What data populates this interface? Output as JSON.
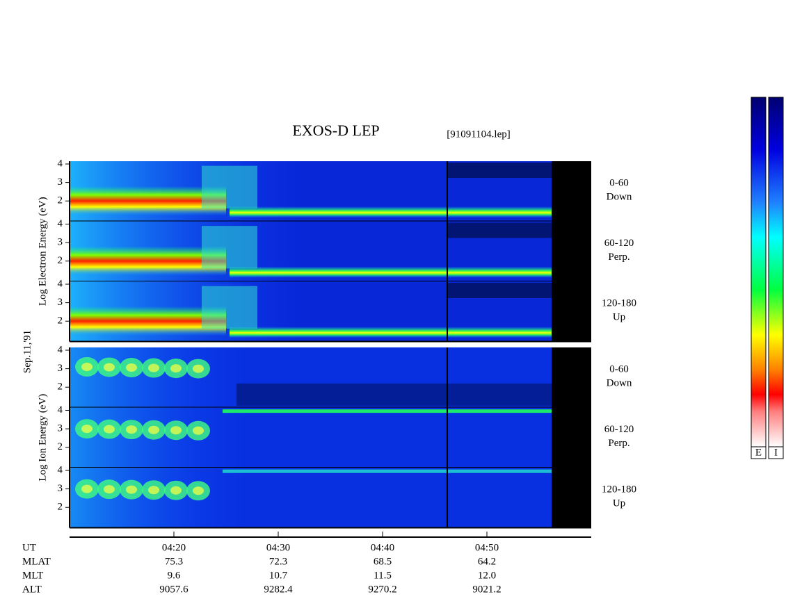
{
  "chart_data": {
    "type": "spectrogram",
    "title": "EXOS-D LEP",
    "file_label": "[91091104.lep]",
    "date_label": "Sep.11,'91",
    "groups": [
      {
        "ylabel": "Log Electron Energy (eV)",
        "panels": [
          {
            "name": "0-60",
            "direction": "Down"
          },
          {
            "name": "60-120",
            "direction": "Perp."
          },
          {
            "name": "120-180",
            "direction": "Up"
          }
        ]
      },
      {
        "ylabel": "Log Ion Energy (eV)",
        "panels": [
          {
            "name": "0-60",
            "direction": "Down"
          },
          {
            "name": "60-120",
            "direction": "Perp."
          },
          {
            "name": "120-180",
            "direction": "Up"
          }
        ]
      }
    ],
    "ylim": [
      0.9,
      4.15
    ],
    "yticks": [
      2,
      3,
      4
    ],
    "xlabel": "UT",
    "xlim": [
      250,
      300
    ],
    "xticks": [
      {
        "value": 260,
        "label": "04:20"
      },
      {
        "value": 270,
        "label": "04:30"
      },
      {
        "value": 280,
        "label": "04:40"
      },
      {
        "value": 290,
        "label": "04:50"
      }
    ],
    "ephemeris": [
      {
        "name": "MLAT",
        "values": [
          75.3,
          72.3,
          68.5,
          64.2
        ]
      },
      {
        "name": "MLT",
        "values": [
          9.6,
          10.7,
          11.5,
          12.0
        ],
        "value_labels": [
          "9.6",
          "10.7",
          "11.5",
          "12.0"
        ]
      },
      {
        "name": "ALT",
        "values": [
          9057.6,
          9282.4,
          9270.2,
          9021.2
        ]
      }
    ],
    "colorbars": [
      "E",
      "I"
    ]
  }
}
